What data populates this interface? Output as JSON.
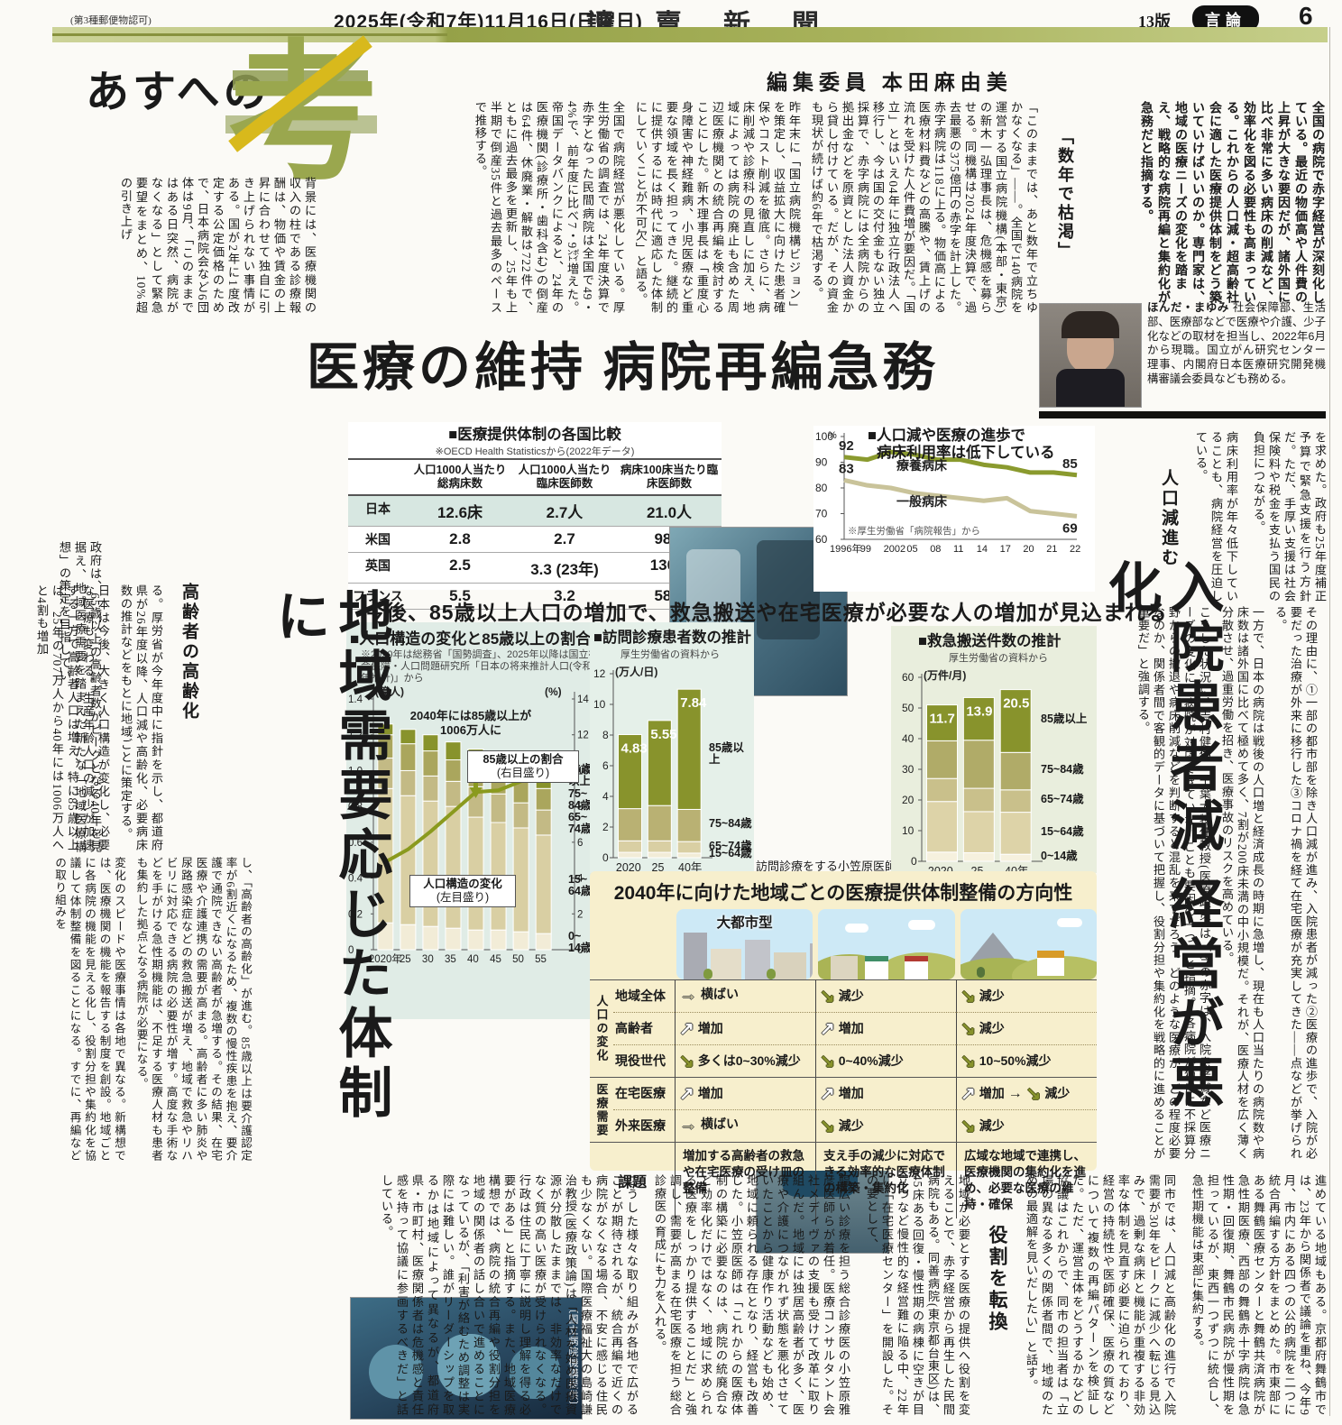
{
  "header": {
    "left_note": "(第3種郵便物認可)",
    "date": "2025年(令和7年)11月16日(日曜日)",
    "masthead": "讀賣新聞",
    "edition": "13版",
    "section_badge": "言論",
    "page_number": "6"
  },
  "logo": {
    "series": "あすへの",
    "kanji": "考"
  },
  "byline": "編集委員 本田麻由美",
  "headline": "医療の維持 病院再編急務",
  "lead": "全国の病院で赤字経営が深刻化している。最近の物価高や人件費の上昇が大きな要因だが、諸外国に比べ非常に多い病床の削減など、効率化を図る必要性も高まっている。これからの人口減・超高齢社会に適した医療提供体制をどう築いていけばいいのか。専門家は、地域の医療ニーズの変化を踏まえ、戦略的な病院再編と集約化が急務だと指摘する。",
  "bio": {
    "name": "ほんだ・まゆみ",
    "text": "社会保障部、生活部、医療部などで医療や介護、少子化などの取材を担当し、2022年6月から現職。国立がん研究センター理事、内閣府日本医療研究開発機構審議会委員なども務める。"
  },
  "top_article": {
    "subhead": "「数年で枯渇」",
    "body1": "「このままでは、あと数年で立ちゆかなくなる」――。全国で140病院を運営する国立病院機構(本部・東京)の新木一弘理事長は、危機感を募らせる。同機構は2024年度決算で、過去最悪の375億円の赤字を計上した。赤字病院は118に上る。物価高による医療材料費などの高騰や、賃上げの流れを受けた人件費増が要因だ。「国立」とはいえ04年に独立行政法人へ移行し、今は国の交付金もない独立採算で、赤字病院には全病院からの拠出金などを原資とした法人資金から貸し付けている。だが、その資金も現状が続けば約6年で枯渇する。",
    "body2": "昨年末に「国立病院機構ビジョン」を策定し、収益拡大に向けた患者確保やコスト削減を徹底。さらに、病床削減や診療科の見直しに加え、地域によっては病院の廃止も含めた周辺医療機関との統合再編を検討することにした。新木理事長は「重度心身障害や神経難病、小児医療など重要な領域を長く担ってきた。継続的に提供するには時代に適応した体制にしていくことが不可欠」と語る。",
    "body3": "全国で病院経営が悪化している。厚生労働省の調査では、24年度決算で赤字となった民間病院は全国で49・4%で、前年度に比べ7・9㌽増えた。帝国データバンクによると、24年の医療機関(診療所・歯科含む)の倒産は64件、休廃業・解散は722件で、ともに過去最多を更新し、25年も上半期で倒産35件と過去最多のペースで推移する。",
    "body4": "背景には、医療機関の収入の柱である診療報酬は、物価や賃金の上昇に合わせて独自に引き上げられない事情がある。国が2年に1度改定する公定価格のためで、日本病院会など6団体は9月、「このままではある日突然、病院がなくなる」として緊急要望をまとめ、10%超の引き上げ"
  },
  "right_article": {
    "cont1": "を求めた。政府も25年度補正予算で緊急支援を行う方針だ。ただ、手厚い支援は社会保険料や税金を支払う国民の負担につながる。",
    "cont2": "病床利用率が年々低下していることも、病院経営を圧迫している。",
    "subhead": "人口減進む",
    "body1": "その理由に、①一部の都市部を除き人口減が進み、入院患者が減った②医療の進歩で、入院が必要だった治療が外来に移行した③コロナ禍を経て在宅医療が充実してきた――点などが挙げられる。",
    "body2": "一方で、日本の病院は戦後の人口増と経済成長の時期に急増し、現在も人口当たりの病院数や病床数は諸外国に比べて極めて多く、7割が200床未満の中小規模だ。それが、医療人材を広く薄く分散させ、過重労働を招き、医療事故のリスクを高めている。",
    "body3": "こうした状況に、吉村健佑・千葉大特任教授(医療政策)は「今の赤字は、入院患者減など医療ニーズの変化に、病院が対応できていないことも要因の一つ」と指摘。「各病院が独自に不採算分野からの撤退や病床削減などを判断すると混乱を来すだろう。どのような医療が、どの程度必要なのか、関係者間で客観的データに基づいて把握し、役割分担や集約化を戦略的に進めることが重要だ」と強調する。",
    "headline": "入院患者減 経営が悪化"
  },
  "left_article": {
    "intro": "政府は、65歳以上の高齢者数がピークとなる40年を見据え、地域医療需要を踏まえた新たな「地域医療構想」の策定を目指してい",
    "subhead": "高齢者の高齢化",
    "body1": "る。厚労省が今年度中に指針を示し、都道府県が26年度以降、人口減や高齢化、必要病床数の推計などをもとに地域ごとに策定する。",
    "body2": "日本は今後、大きく人口構造が変化し、必要な医療も変わる。生産年齢人口の減少が加速する一方で高齢者人口は増え、特に85歳以上は、25年の707万人から40年には1006万人へと4割も増加",
    "body3": "し、「高齢者の高齢化」が進む。85歳以上は要介護認定率が6割近くになるため、複数の慢性疾患を抱え、要介護で通院できない高齢者が急増する。その結果、在宅医療や介護連携の需要が高まる。高齢者に多い肺炎や尿路感染症などの救急搬送が増え、地域で救急やリハビリに対応できる病院の必要性が増す。高度な手術などを手がける急性期機能は、不足する医療人材も患者も集約した拠点となる病院が必要になる。",
    "body4": "変化のスピードや医療事情は各地で異なる。新構想では、医療機関の機能を報告する制度を創設。地域ごとに各病院の機能を見える化し、役割分担や集約化を協議して体制整備を図ることになる。すでに、再編などの取り組みを",
    "headline": "地域需要応じた体制に"
  },
  "bottom_article": {
    "block1": "進めている地域もある。京都府舞鶴市では、23年から関係者で議論を重ね、今年9月、市内にある四つの公的病院を二つに統合再編する方針をまとめた。市東部にある舞鶴医療センターと舞鶴共済病院が急性期医療、西部の舞鶴赤十字病院は急性期・回復期、舞鶴市民病院が慢性期を担っているが、東西一つずつに統合し、急性期機能は東部に集約する。",
    "block2": "同市では、人口減と高齢化の進行で入院需要が30年をピークに減少へ転じる見込みで、過剰な病床と機能が重複する非効率な体制を見直す必要に迫られており、経営の持続性や医師確保、医療の質などについて複数の再編パターンを検証した。ただ、運営主体をどうするかなどの協議はこれからで、同市の担当者は「立場の異なる多くの関係者間で、地域のための最適解を見いだしたい」と話す。",
    "subhead": "役割を転換",
    "block3": "地域が必要とする医療の提供へ役割を変えることで、赤字経営から再生した民間病院もある。同善病院(東京都台東区)は、45床ある回復・慢性期の病棟に空きが目立つなど慢性的な経営難に陥る中、22年に「在宅医療センター」を開設した。その要として、",
    "block4": "幅広い診療を担う総合診療医の小笠原雅彦医師らが着任。医療コンサルタント会社メディヴァの支援も受けて改革に取り組んだ。地域には独居高齢者が多く、医療や介護につながれず状態を悪化させていたことから健康作り活動なども始め、地域に頼られる存在となり、経営も改善した。小笠原医師は「これからの医療体制の構築に必要なのは、病院の統廃合など効率化だけではなく、地域に求められる医療をしっかり提供することだ」と強調し、需要が高まる在宅医療を担う総合診療医の育成にも力を入れる。",
    "block5": "こうした様々な取り組みが各地で広がることが期待されるが、統合再編で近くの病院がなくなる場合、不安に感じる住民も少なくない。国際医療福祉大の島崎謙治教授(医療政策論)は「人材を始め医療資源が分散したままでは、非効率なだけでなく質の高い医療が受けられなくなる。行政は住民に丁寧に説明し理解を得る必要がある」と指摘する。また、地域医療構想では、病院の統合再編や役割分担を地域の関係者の話し合いで進めることになっているが、「利害が絡むため調整は実際には難しい。誰がリーダーシップを取るかは地域によって異なるが、都道府県・市町村、医療関係者は危機感と責任感を持って協議に参画するべきだ」と話している。"
  },
  "mid_banner": "今後、85歳以上人口の増加で、救急搬送や在宅医療が必要な人の増加が見込まれる",
  "photos": {
    "surgery_caption": "〔国立病院機構提供〕",
    "visit_caption": "訪問診療をする小笠原医師"
  },
  "colors": {
    "olive_dark": "#88932c",
    "olive_mid": "#aab05e",
    "tan": "#d8cda2",
    "cream": "#f1ead3",
    "accent_yellow": "#d8b91c",
    "highlight_row": "#d7e7e1"
  },
  "chart_data": [
    {
      "type": "table",
      "title": "■医療提供体制の各国比較",
      "note": "※OECD Health Statisticsから(2022年データ)",
      "columns": [
        "",
        "人口1000人当たり総病床数",
        "人口1000人当たり臨床医師数",
        "病床100床当たり臨床医師数"
      ],
      "rows": [
        [
          "日本",
          "12.6床",
          "2.7人",
          "21.0人"
        ],
        [
          "米国",
          "2.8",
          "2.7",
          "98.9"
        ],
        [
          "英国",
          "2.5",
          "3.3 (23年)",
          "130.2"
        ],
        [
          "フランス",
          "5.5",
          "3.2",
          "58.1"
        ]
      ],
      "highlight_row": 0
    },
    {
      "type": "line",
      "title1": "■人口減や医療の進歩で",
      "title2": "病床利用率は低下している",
      "note": "※厚生労働省「病院報告」から",
      "unit": "%",
      "x": [
        "1996年",
        "99",
        "2002",
        "05",
        "08",
        "11",
        "14",
        "17",
        "20",
        "21",
        "22"
      ],
      "ylim": [
        60,
        100
      ],
      "yticks": [
        60,
        70,
        80,
        90,
        100
      ],
      "series": [
        {
          "name": "療養病床",
          "color": "#8a9a2e",
          "values": [
            92,
            91,
            94,
            93,
            91,
            91,
            89,
            88,
            86,
            86,
            85
          ],
          "start_label": "92",
          "end_label": "85"
        },
        {
          "name": "一般病床",
          "color": "#c9c39a",
          "values": [
            83,
            81,
            80,
            78,
            77,
            76,
            75,
            76,
            71,
            70,
            69
          ],
          "start_label": "83",
          "end_label": "69"
        }
      ]
    },
    {
      "type": "bar-line",
      "title": "■人口構造の変化と85歳以上の割合",
      "note": "※2020年は総務省「国勢調査」、2025年以降は国立社会保障・人口問題研究所「日本の将来推計人口(令和5年推計)」から",
      "left_unit": "(億人)",
      "right_unit": "(%)",
      "categories": [
        "2020年",
        "25",
        "30",
        "35",
        "40",
        "45",
        "50",
        "55"
      ],
      "left_ylim": [
        0,
        1.4
      ],
      "right_ylim": [
        0,
        14
      ],
      "segments": [
        "0~14歳",
        "15~64歳",
        "65~74歳",
        "75~84歳",
        "85歳以上"
      ],
      "seg_colors": [
        "#f2ecd7",
        "#d9cfa3",
        "#c3ba85",
        "#aaa65d",
        "#88932c"
      ],
      "values": [
        [
          0.15,
          0.75,
          0.17,
          0.13,
          0.06
        ],
        [
          0.14,
          0.72,
          0.14,
          0.15,
          0.08
        ],
        [
          0.13,
          0.7,
          0.14,
          0.14,
          0.09
        ],
        [
          0.12,
          0.68,
          0.14,
          0.12,
          0.1
        ],
        [
          0.11,
          0.63,
          0.17,
          0.11,
          0.1
        ],
        [
          0.11,
          0.6,
          0.16,
          0.12,
          0.1
        ],
        [
          0.1,
          0.58,
          0.14,
          0.13,
          0.11
        ],
        [
          0.09,
          0.55,
          0.14,
          0.12,
          0.11
        ]
      ],
      "line": {
        "name": "85歳以上の割合(右目盛り)",
        "color": "#8a9a1e",
        "values": [
          4.9,
          5.6,
          6.6,
          7.7,
          8.8,
          8.9,
          9.4,
          10.3
        ]
      },
      "annotation": "2040年には85歳以上が1006万人に",
      "box_label1": "人口構造の変化",
      "box_label2": "(左目盛り)",
      "callout1": "85歳以上の割合",
      "callout2": "(右目盛り)"
    },
    {
      "type": "stacked-bar",
      "title": "■訪問診療患者数の推計",
      "note": "厚生労働省の資料から",
      "unit": "(万人/日)",
      "ylim": [
        0,
        12
      ],
      "yticks": [
        0,
        2,
        4,
        6,
        8,
        10,
        12
      ],
      "categories": [
        "2020",
        "25",
        "40年"
      ],
      "segments": [
        "15~64歳",
        "65~74歳",
        "75~84歳",
        "85歳以上"
      ],
      "seg_colors": [
        "#f2ecd7",
        "#d9cfa3",
        "#b9b173",
        "#88932c"
      ],
      "values": [
        [
          0.35,
          0.75,
          2.1,
          4.83
        ],
        [
          0.35,
          0.75,
          2.3,
          5.55
        ],
        [
          0.3,
          0.75,
          2.1,
          7.84
        ]
      ],
      "top_labels": [
        "4.83",
        "5.55",
        "7.84"
      ],
      "legend": [
        "85歳以上",
        "75~84歳",
        "65~74歳",
        "15~64歳"
      ]
    },
    {
      "type": "stacked-bar",
      "title": "■救急搬送件数の推計",
      "note": "厚生労働省の資料から",
      "unit": "(万件/月)",
      "ylim": [
        0,
        60
      ],
      "yticks": [
        0,
        10,
        20,
        30,
        40,
        50,
        60
      ],
      "categories": [
        "2020",
        "25",
        "40年"
      ],
      "segments": [
        "0~14歳",
        "15~64歳",
        "65~74歳",
        "75~84歳",
        "85歳以上"
      ],
      "seg_colors": [
        "#f6f1de",
        "#ddd3a8",
        "#c9c08b",
        "#b0ab68",
        "#88932c"
      ],
      "values": [
        [
          3,
          16.5,
          7.5,
          12.3,
          11.7
        ],
        [
          2.8,
          13.4,
          7.6,
          15.7,
          13.9
        ],
        [
          2.3,
          13.7,
          7.3,
          12.2,
          20.5
        ]
      ],
      "top_labels": [
        "11.7",
        "13.9",
        "20.5"
      ],
      "legend": [
        "85歳以上",
        "75~84歳",
        "65~74歳",
        "15~64歳",
        "0~14歳"
      ]
    },
    {
      "type": "matrix",
      "title": "2040年に向けた地域ごとの医療提供体制整備の方向性",
      "columns": [
        "大都市型",
        "地方都市型",
        "人口の少ない地域"
      ],
      "row_groups": [
        {
          "name": "人口の変化",
          "rows": [
            {
              "label": "地域全体",
              "cells": [
                {
                  "trend": "flat",
                  "text": "横ばい"
                },
                {
                  "trend": "down",
                  "text": "減少"
                },
                {
                  "trend": "down",
                  "text": "減少"
                }
              ]
            },
            {
              "label": "高齢者",
              "cells": [
                {
                  "trend": "up",
                  "text": "増加"
                },
                {
                  "trend": "up",
                  "text": "増加"
                },
                {
                  "trend": "down",
                  "text": "減少"
                }
              ]
            },
            {
              "label": "現役世代",
              "cells": [
                {
                  "trend": "down",
                  "text": "多くは0~30%減少"
                },
                {
                  "trend": "down",
                  "text": "0~40%減少"
                },
                {
                  "trend": "down",
                  "text": "10~50%減少"
                }
              ]
            }
          ]
        },
        {
          "name": "医療需要",
          "rows": [
            {
              "label": "在宅医療",
              "cells": [
                {
                  "trend": "up",
                  "text": "増加"
                },
                {
                  "trend": "up",
                  "text": "増加"
                },
                {
                  "trend": "updown",
                  "text": "増加 → 減少"
                }
              ]
            },
            {
              "label": "外来医療",
              "cells": [
                {
                  "trend": "flat",
                  "text": "横ばい"
                },
                {
                  "trend": "down",
                  "text": "減少"
                },
                {
                  "trend": "down",
                  "text": "減少"
                }
              ]
            }
          ]
        }
      ],
      "task_label": "課題",
      "tasks": [
        "増加する高齢者の救急や在宅医療の受け皿の整備",
        "支え手の減少に対応できる効率的な医療体制の構築・集約化",
        "広域な地域で連携し、医療機関の集約化を進め、必要な医療の維持・確保"
      ]
    }
  ]
}
